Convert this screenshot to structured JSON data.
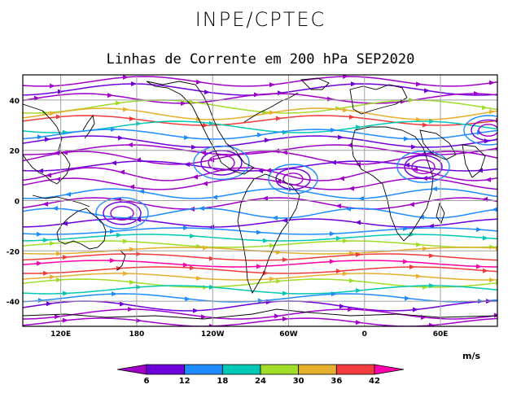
{
  "header": {
    "source": "INPE/CPTEC",
    "title": "Linhas de Corrente em 200 hPa SEP2020"
  },
  "map": {
    "lat_ticks": [
      {
        "value": 40,
        "label": "40"
      },
      {
        "value": 20,
        "label": "20"
      },
      {
        "value": 0,
        "label": "0"
      },
      {
        "value": -20,
        "label": "-20"
      },
      {
        "value": -40,
        "label": "-40"
      }
    ],
    "lon_ticks": [
      {
        "value": 120,
        "label": "120E"
      },
      {
        "value": 180,
        "label": "180"
      },
      {
        "value": 240,
        "label": "120W"
      },
      {
        "value": 300,
        "label": "60W"
      },
      {
        "value": 360,
        "label": "0"
      },
      {
        "value": 420,
        "label": "60E"
      }
    ],
    "grid": true
  },
  "colorbar": {
    "units": "m/s",
    "labels": [
      "6",
      "12",
      "18",
      "24",
      "30",
      "36",
      "42"
    ],
    "colors": [
      "#a000c8",
      "#6e00dc",
      "#1e8cff",
      "#00c8b4",
      "#a0dc28",
      "#e6af2d",
      "#f03c3c",
      "#ff00aa"
    ]
  }
}
